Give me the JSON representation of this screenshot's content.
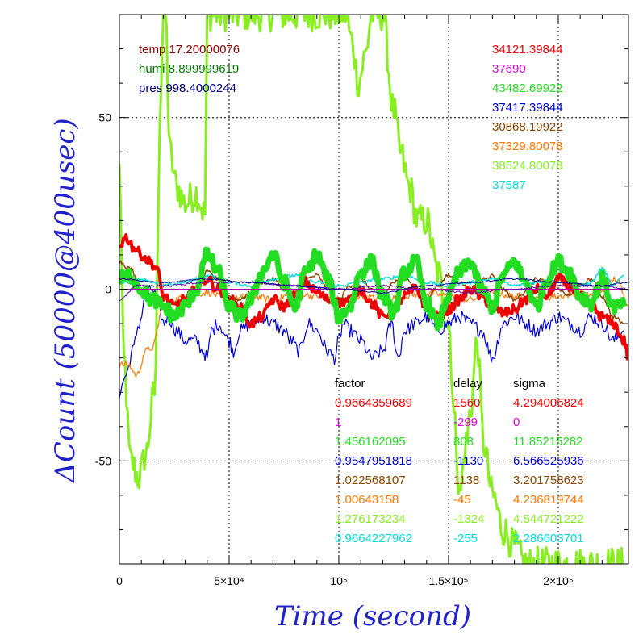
{
  "chart_data": {
    "type": "line",
    "title": "",
    "xlabel": "Time (second)",
    "ylabel": "ΔCount (50000@400usec)",
    "xlim": [
      0,
      232000
    ],
    "ylim": [
      -80,
      80
    ],
    "grid": true,
    "x_ticks": [
      {
        "value": 0,
        "label": "0"
      },
      {
        "value": 50000,
        "label": "5×10⁴"
      },
      {
        "value": 100000,
        "label": "10⁵"
      },
      {
        "value": 150000,
        "label": "1.5×10⁵"
      },
      {
        "value": 200000,
        "label": "2×10⁵"
      }
    ],
    "y_ticks": [
      {
        "value": -50,
        "label": "-50"
      },
      {
        "value": 0,
        "label": "0"
      },
      {
        "value": 50,
        "label": "50"
      }
    ],
    "env_readings": [
      {
        "text": "temp 17.20000076",
        "color": "#8b0000"
      },
      {
        "text": "humi 8.899999619",
        "color": "#007a00"
      },
      {
        "text": "pres 998.4000244",
        "color": "#00007a"
      }
    ],
    "baselines": [
      {
        "text": "34121.39844",
        "color": "#ee0000"
      },
      {
        "text": "37690",
        "color": "#dd00dd"
      },
      {
        "text": "43482.69922",
        "color": "#22dd22"
      },
      {
        "text": "37417.39844",
        "color": "#0000cc"
      },
      {
        "text": "30868.19922",
        "color": "#884400"
      },
      {
        "text": "37329.80078",
        "color": "#ff7700"
      },
      {
        "text": "38524.80078",
        "color": "#88ee22"
      },
      {
        "text": "37587",
        "color": "#00dddd"
      }
    ],
    "table": {
      "headers": [
        "factor",
        "delay",
        "sigma"
      ],
      "rows": [
        {
          "factor": "0.9664359689",
          "delay": "1560",
          "sigma": "4.294006824",
          "color": "#ee0000"
        },
        {
          "factor": "1",
          "delay": "-299",
          "sigma": "0",
          "color": "#dd00dd"
        },
        {
          "factor": "1.456162095",
          "delay": "808",
          "sigma": "11.85215282",
          "color": "#22dd22"
        },
        {
          "factor": "0.9547951818",
          "delay": "-1130",
          "sigma": "6.566525936",
          "color": "#0000cc"
        },
        {
          "factor": "1.022568107",
          "delay": "1138",
          "sigma": "3.201758623",
          "color": "#884400"
        },
        {
          "factor": "1.00643158",
          "delay": "-45",
          "sigma": "4.236819744",
          "color": "#ff7700"
        },
        {
          "factor": "1.276173234",
          "delay": "-1324",
          "sigma": "4.544721222",
          "color": "#88ee22"
        },
        {
          "factor": "0.9664227962",
          "delay": "-255",
          "sigma": "2.286603701",
          "color": "#00dddd"
        }
      ]
    },
    "series": [
      {
        "color": "#88ee22",
        "width": 3,
        "noise": 5,
        "x": [
          0,
          2000,
          5000,
          9000,
          12000,
          16000,
          19000,
          20000,
          21000,
          23000,
          26000,
          30000,
          35000,
          39000,
          40000,
          42000,
          46000,
          50000,
          55000,
          60000,
          64000,
          70000,
          75000,
          80000,
          85000,
          90000,
          95000,
          100000,
          103000,
          106000,
          109000,
          112000,
          115000,
          120000,
          125000,
          128000,
          132000,
          136000,
          140000,
          145000,
          150000,
          153000,
          155000,
          158000,
          160000,
          163000,
          166000,
          170000,
          175000,
          180000,
          185000,
          190000,
          195000,
          200000,
          205000,
          210000,
          215000,
          220000,
          225000,
          230000
        ],
        "y": [
          35,
          -20,
          -50,
          -55,
          -48,
          -30,
          60,
          80,
          80,
          40,
          30,
          25,
          28,
          22,
          80,
          80,
          80,
          80,
          80,
          80,
          80,
          80,
          80,
          80,
          80,
          80,
          80,
          80,
          80,
          72,
          60,
          68,
          80,
          80,
          52,
          40,
          30,
          20,
          20,
          5,
          -10,
          -40,
          -60,
          -45,
          -35,
          -15,
          -45,
          -60,
          -70,
          -75,
          -80,
          -80,
          -80,
          -80,
          -80,
          -80,
          -80,
          -80,
          -80,
          -80
        ]
      },
      {
        "color": "#0000cc",
        "width": 1.2,
        "noise": 2,
        "x": [
          0,
          3000,
          6000,
          9000,
          12000,
          15000,
          18000,
          20000,
          22000,
          26000,
          30000,
          35000,
          38000,
          40000,
          42000,
          45000,
          50000,
          52000,
          55000,
          60000,
          65000,
          70000,
          75000,
          78000,
          82000,
          86000,
          90000,
          95000,
          98000,
          100000,
          102000,
          105000,
          110000,
          115000,
          120000,
          124000,
          127000,
          130000,
          135000,
          140000,
          145000,
          150000,
          155000,
          160000,
          165000,
          170000,
          175000,
          180000,
          185000,
          190000,
          195000,
          200000,
          205000,
          210000,
          215000,
          220000,
          225000,
          230000
        ],
        "y": [
          -30,
          -25,
          -18,
          -10,
          -2,
          0,
          -5,
          -10,
          -8,
          -12,
          -15,
          -15,
          -18,
          -20,
          -12,
          -10,
          -15,
          -18,
          -12,
          -10,
          -8,
          -10,
          -12,
          -15,
          -18,
          -10,
          -12,
          -18,
          -20,
          -15,
          -10,
          -12,
          -15,
          -20,
          -18,
          -10,
          -20,
          -12,
          -10,
          -8,
          -12,
          -10,
          -8,
          -10,
          -12,
          -20,
          -10,
          -8,
          -10,
          -12,
          -10,
          -8,
          -10,
          -12,
          -8,
          -10,
          -15,
          -12
        ]
      },
      {
        "color": "#ff7700",
        "width": 1.2,
        "noise": 1,
        "x": [
          0,
          4000,
          8000,
          12000,
          15000,
          20000,
          25000,
          30000,
          40000,
          50000,
          60000,
          70000,
          80000,
          90000,
          100000,
          110000,
          120000,
          130000,
          140000,
          150000,
          160000,
          170000,
          180000,
          190000,
          200000,
          210000,
          215000,
          220000,
          226000,
          232000
        ],
        "y": [
          -22,
          -22,
          -25,
          -18,
          -17,
          -5,
          -3,
          -2,
          -1,
          -3,
          -2,
          -3,
          -1,
          -2,
          -3,
          -2,
          -3,
          -2,
          -1,
          -2,
          -3,
          -1,
          -2,
          -3,
          -2,
          -1,
          -2,
          -1,
          3,
          -4
        ]
      },
      {
        "color": "#884400",
        "width": 1.5,
        "noise": 0.6,
        "x": [
          0,
          5000,
          10000,
          15000,
          20000,
          25000,
          30000,
          35000,
          40000,
          45000,
          50000,
          55000,
          60000,
          65000,
          70000,
          75000,
          80000,
          85000,
          90000,
          95000,
          100000,
          105000,
          110000,
          115000,
          120000,
          125000,
          130000,
          135000,
          140000,
          145000,
          150000,
          155000,
          160000,
          165000,
          170000,
          175000,
          180000,
          185000,
          190000,
          195000,
          200000,
          205000,
          210000,
          215000,
          220000,
          225000,
          230000
        ],
        "y": [
          8,
          6,
          0,
          -3,
          -5,
          -4,
          -3,
          0,
          5,
          3,
          -2,
          -3,
          -1,
          2,
          3,
          0,
          -2,
          3,
          4,
          0,
          -3,
          1,
          3,
          0,
          -2,
          2,
          4,
          0,
          -3,
          1,
          4,
          2,
          0,
          3,
          4,
          0,
          -3,
          -1,
          3,
          2,
          0,
          -2,
          1,
          3,
          -2,
          -8,
          -10
        ]
      },
      {
        "color": "#00dddd",
        "width": 1.5,
        "noise": 0.5,
        "x": [
          0,
          10000,
          20000,
          30000,
          40000,
          50000,
          60000,
          70000,
          80000,
          90000,
          100000,
          110000,
          120000,
          130000,
          140000,
          150000,
          160000,
          170000,
          180000,
          190000,
          200000,
          210000,
          215000,
          220000,
          225000,
          230000
        ],
        "y": [
          2,
          3,
          1,
          2,
          4,
          2,
          1,
          3,
          4,
          2,
          1,
          2,
          3,
          4,
          2,
          1,
          2,
          3,
          1,
          2,
          3,
          1,
          2,
          6,
          1,
          4
        ]
      },
      {
        "color": "#ee0000",
        "width": 4,
        "noise": 1.5,
        "x": [
          0,
          3000,
          7000,
          10000,
          14000,
          17000,
          20000,
          25000,
          30000,
          35000,
          40000,
          45000,
          50000,
          55000,
          60000,
          65000,
          70000,
          75000,
          80000,
          85000,
          90000,
          95000,
          100000,
          105000,
          110000,
          115000,
          120000,
          125000,
          130000,
          135000,
          140000,
          145000,
          150000,
          155000,
          160000,
          165000,
          170000,
          175000,
          180000,
          185000,
          190000,
          195000,
          200000,
          205000,
          210000,
          215000,
          220000,
          225000,
          230000,
          232000
        ],
        "y": [
          13,
          15,
          12,
          10,
          8,
          6,
          -2,
          -5,
          -3,
          0,
          3,
          0,
          -3,
          -5,
          -10,
          -8,
          -3,
          -5,
          -2,
          2,
          -1,
          -3,
          -4,
          -3,
          0,
          -4,
          -8,
          -6,
          -2,
          0,
          -5,
          -8,
          -6,
          -3,
          0,
          -2,
          -5,
          -7,
          -6,
          -3,
          0,
          -2,
          3,
          1,
          -2,
          -5,
          -8,
          -10,
          -15,
          -20
        ]
      },
      {
        "color": "#22dd22",
        "width": 7,
        "noise": 2,
        "x": [
          0,
          5000,
          10000,
          15000,
          20000,
          25000,
          30000,
          35000,
          40000,
          45000,
          50000,
          55000,
          60000,
          65000,
          70000,
          75000,
          80000,
          85000,
          90000,
          95000,
          100000,
          105000,
          110000,
          115000,
          120000,
          125000,
          130000,
          135000,
          140000,
          145000,
          150000,
          155000,
          160000,
          165000,
          170000,
          175000,
          180000,
          185000,
          190000,
          195000,
          200000,
          205000,
          210000,
          215000,
          220000,
          225000,
          230000
        ],
        "y": [
          3,
          4,
          0,
          -3,
          -5,
          -8,
          -5,
          0,
          10,
          5,
          -5,
          -8,
          -3,
          5,
          10,
          2,
          -5,
          5,
          10,
          3,
          -8,
          -5,
          5,
          8,
          -2,
          -7,
          5,
          8,
          -4,
          -10,
          -2,
          5,
          8,
          0,
          -5,
          4,
          8,
          2,
          -5,
          3,
          8,
          5,
          -2,
          -4,
          3,
          -5,
          -5
        ]
      },
      {
        "color": "#aa00aa",
        "width": 1,
        "noise": 0,
        "x": [
          0,
          20000,
          40000,
          60000,
          80000,
          100000,
          120000,
          140000,
          160000,
          180000,
          200000,
          220000,
          232000
        ],
        "y": [
          0,
          0,
          0,
          0,
          0,
          0,
          0,
          0,
          0,
          0,
          0,
          0,
          0
        ]
      },
      {
        "color": "#6600aa",
        "width": 1,
        "noise": 0.3,
        "x": [
          0,
          8000,
          20000,
          40000,
          60000,
          80000,
          100000,
          120000,
          140000,
          160000,
          180000,
          200000,
          220000,
          232000
        ],
        "y": [
          -3,
          1,
          1,
          2,
          2,
          1,
          0,
          1,
          0,
          -1,
          0,
          1,
          1,
          0
        ]
      },
      {
        "color": "#000088",
        "width": 1,
        "noise": 0.2,
        "x": [
          0,
          20000,
          40000,
          60000,
          80000,
          100000,
          120000,
          140000,
          160000,
          180000,
          200000,
          220000,
          232000
        ],
        "y": [
          3,
          2,
          3,
          2,
          1,
          0,
          -1,
          1,
          2,
          3,
          2,
          1,
          2
        ]
      }
    ]
  }
}
